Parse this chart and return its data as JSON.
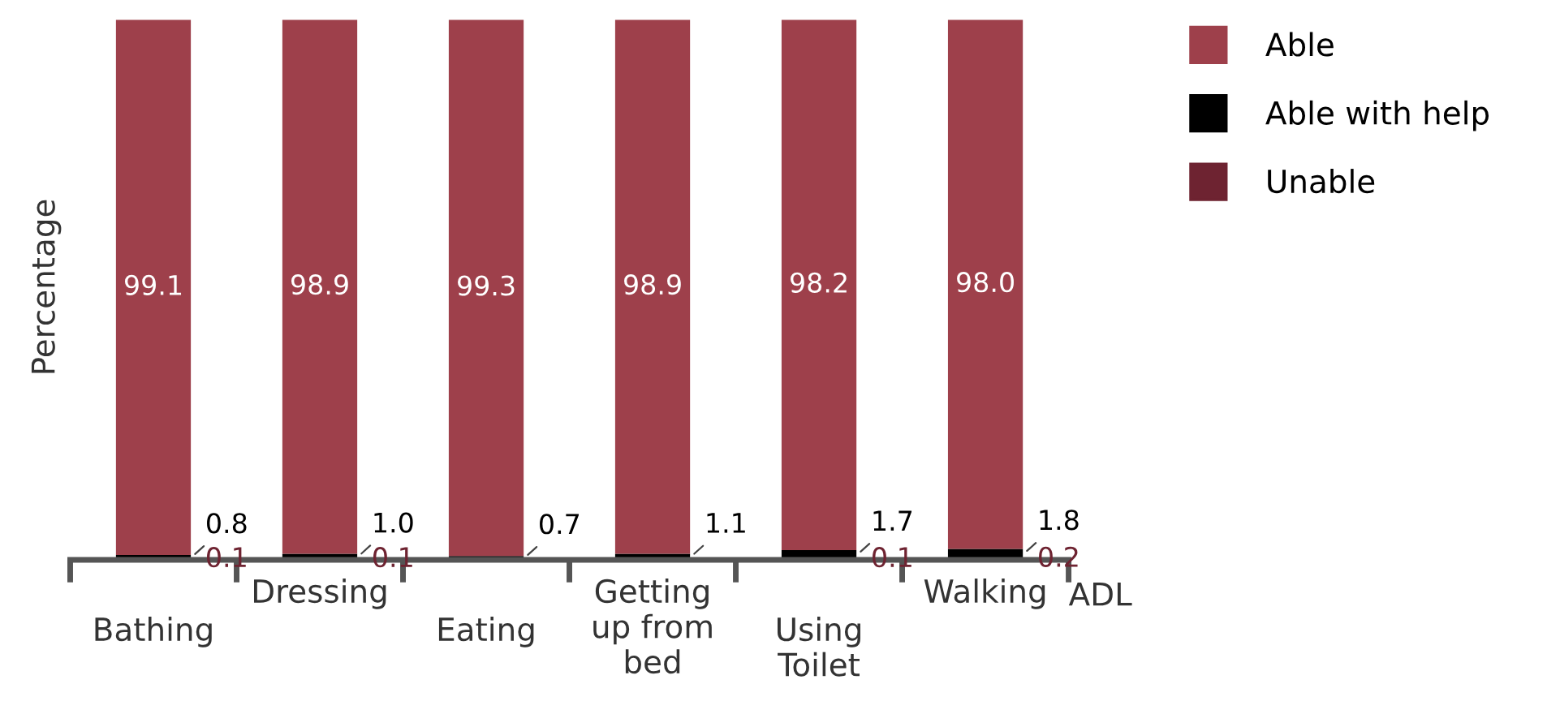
{
  "chart_data": {
    "type": "bar",
    "stacked": true,
    "xlabel": "ADL",
    "ylabel": "Percentage",
    "categories": [
      "Bathing",
      "Dressing",
      "Eating",
      "Getting\nup from\nbed",
      "Using\nToilet",
      "Walking"
    ],
    "series": [
      {
        "name": "Unable",
        "color": "#6e2331",
        "values": [
          0.1,
          0.1,
          null,
          null,
          0.1,
          0.2
        ],
        "value_labels": [
          "0.1",
          "0.1",
          null,
          null,
          "0.1",
          "0.2"
        ]
      },
      {
        "name": "Able with help",
        "color": "#000000",
        "values": [
          0.8,
          1.0,
          0.7,
          1.1,
          1.7,
          1.8
        ],
        "value_labels": [
          "0.8",
          "1.0",
          "0.7",
          "1.1",
          "1.7",
          "1.8"
        ]
      },
      {
        "name": "Able",
        "color": "#9e404b",
        "values": [
          99.1,
          98.9,
          99.3,
          98.9,
          98.2,
          98.0
        ],
        "value_labels": [
          "99.1",
          "98.9",
          "99.3",
          "98.9",
          "98.2",
          "98.0"
        ]
      }
    ],
    "legend": "top right",
    "grid": false
  }
}
